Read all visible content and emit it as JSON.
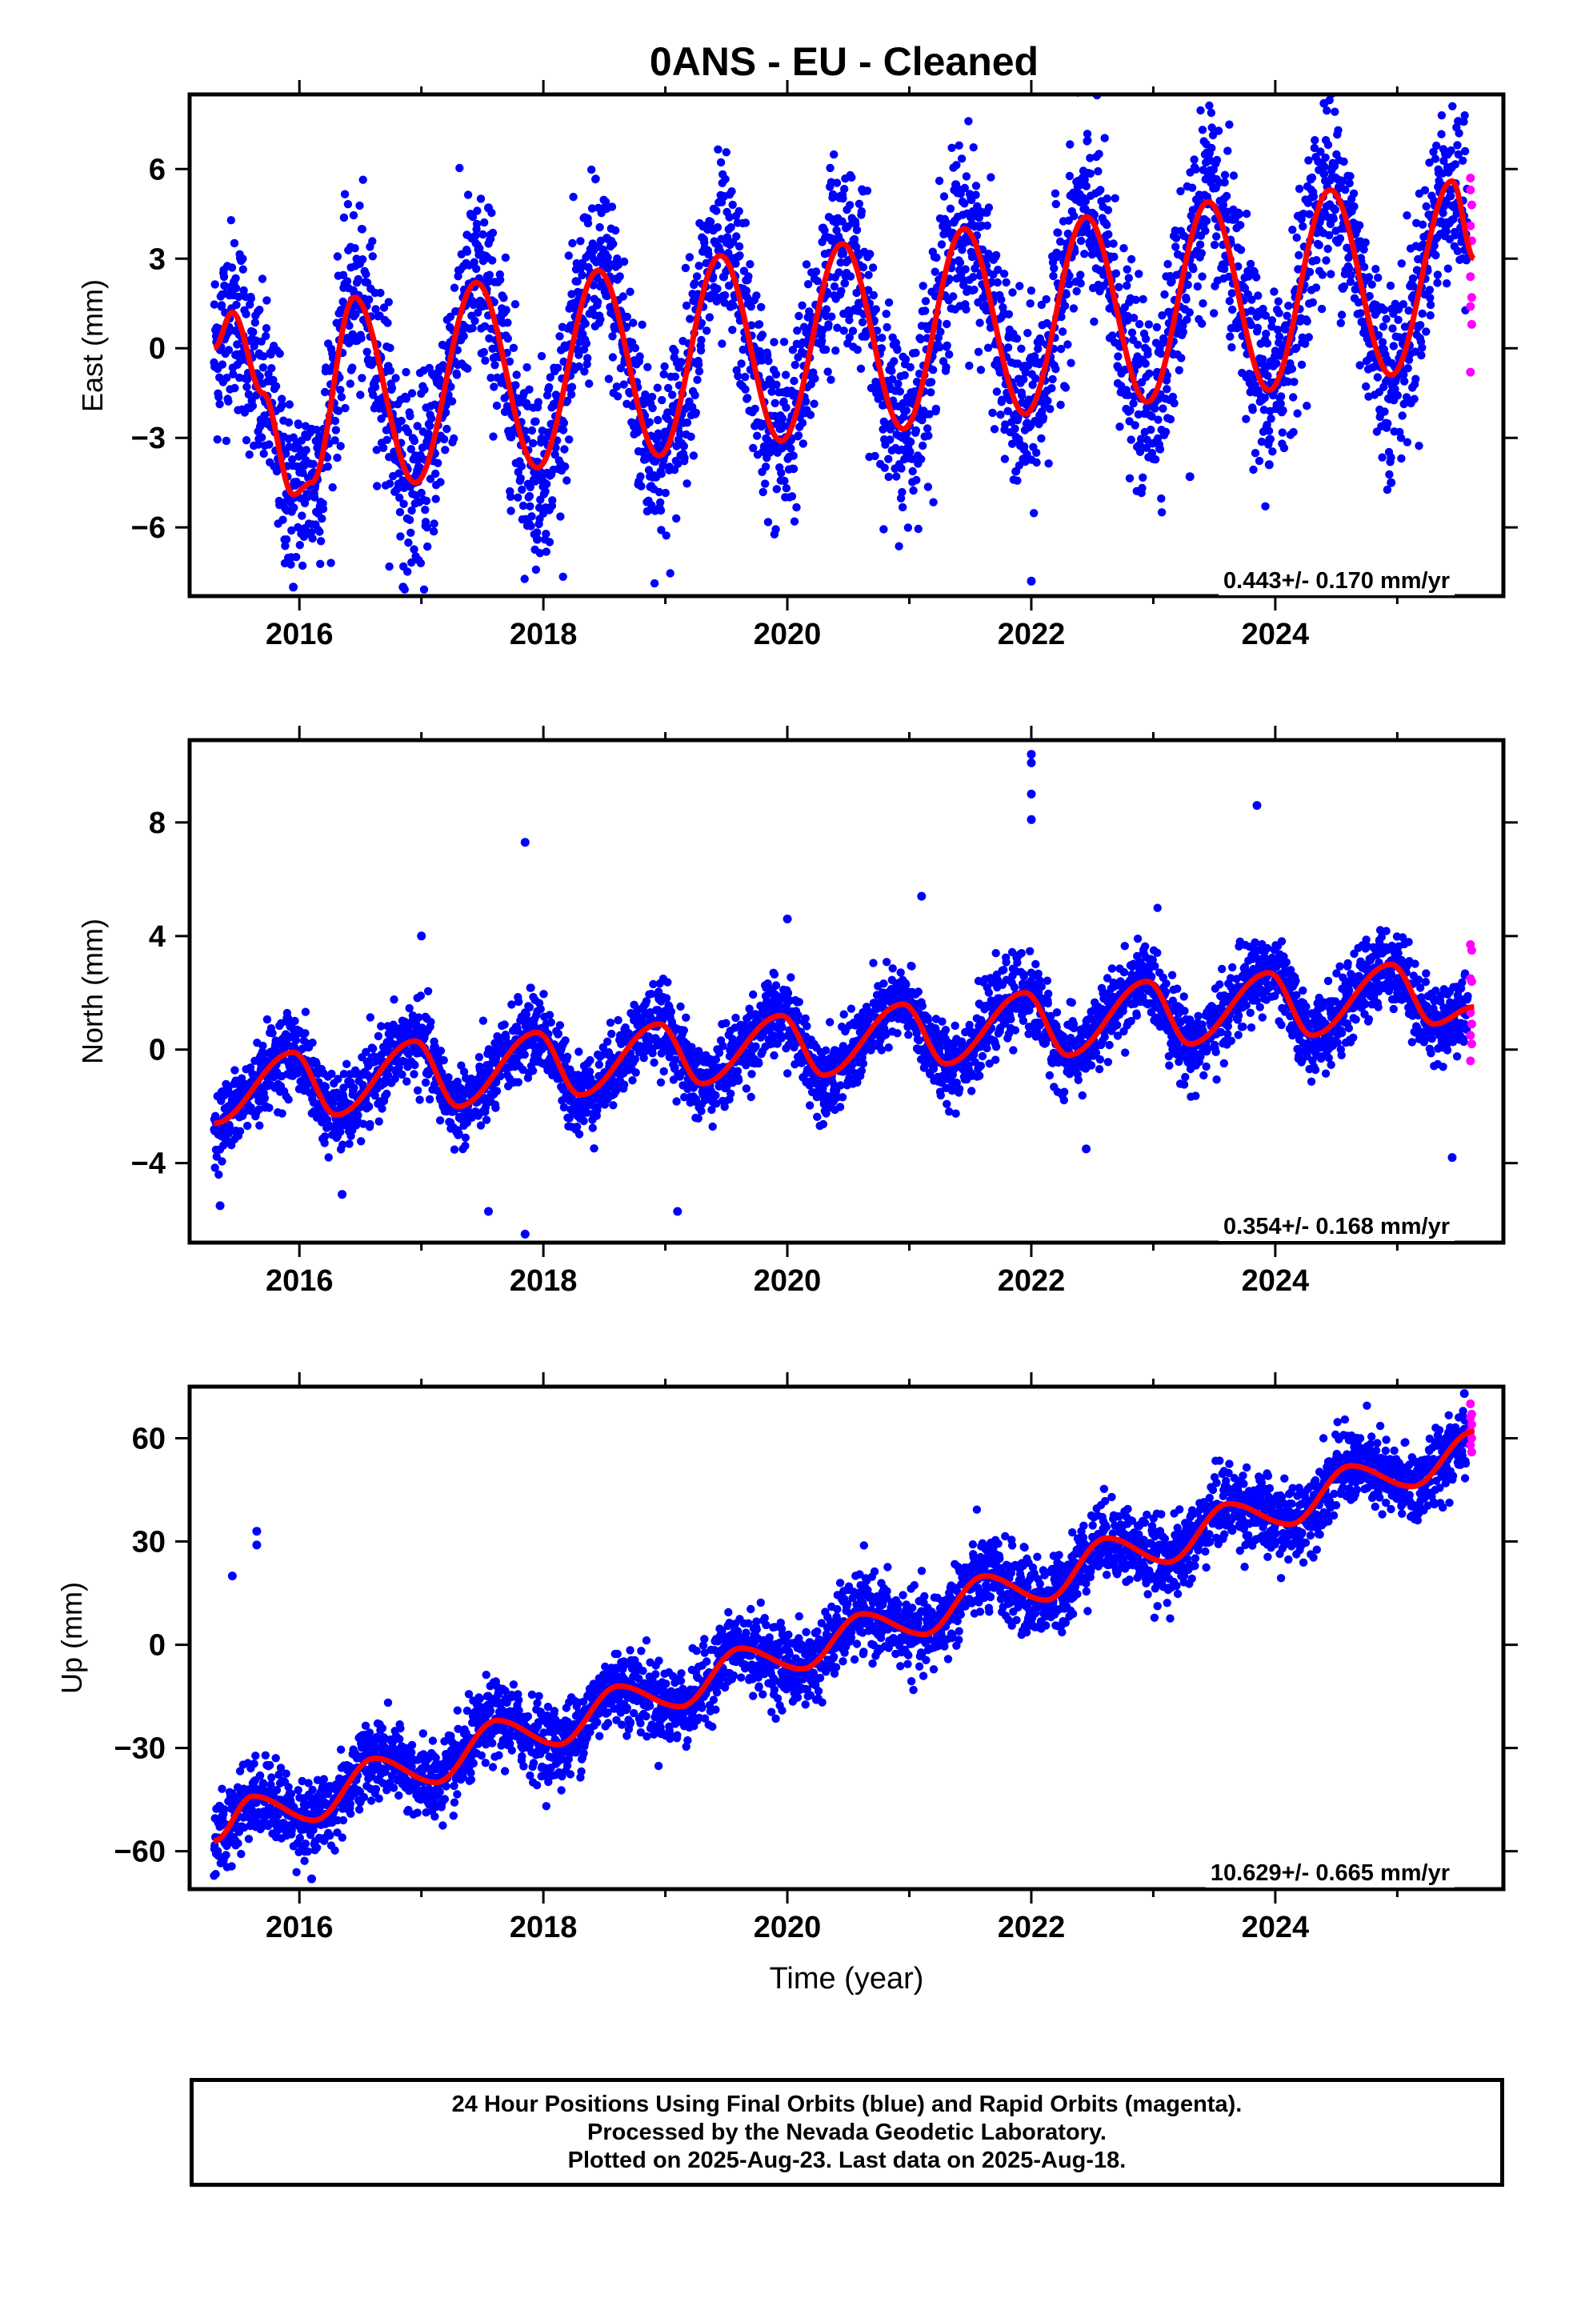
{
  "title": "0ANS  - EU - Cleaned",
  "xlabel": "Time (year)",
  "colors": {
    "final": "#0000ff",
    "rapid": "#ff00ff",
    "model": "#ff0000",
    "axis": "#000000"
  },
  "caption": [
    "24 Hour Positions Using Final Orbits (blue) and Rapid Orbits (magenta).",
    "Processed by the Nevada Geodetic Laboratory.",
    "Plotted on 2025-Aug-23. Last data on 2025-Aug-18."
  ],
  "chart_data": [
    {
      "type": "scatter",
      "name": "east",
      "ylabel": "East (mm)",
      "rate_label": "0.443+/- 0.170 mm/yr",
      "xlim": [
        2015.1,
        2025.87
      ],
      "ylim": [
        -8.3,
        8.5
      ],
      "xticks": [
        2016,
        2018,
        2020,
        2022,
        2024
      ],
      "xtick_labels": [
        "2016",
        "2018",
        "2020",
        "2022",
        "2024"
      ],
      "yticks": [
        -6,
        -3,
        0,
        3,
        6
      ],
      "ytick_labels": [
        "−6",
        "−3",
        "0",
        "3",
        "6"
      ],
      "model": {
        "offset": -1.8,
        "rate": 0.443,
        "amplitude": 3.5,
        "peak_phase": 0.45,
        "ref_year": 2020.25
      },
      "model_curve": [
        [
          2015.3,
          0.0
        ],
        [
          2015.45,
          1.2
        ],
        [
          2015.7,
          -1.5
        ],
        [
          2015.95,
          -4.9
        ],
        [
          2016.1,
          -4.5
        ],
        [
          2016.45,
          1.7
        ],
        [
          2016.95,
          -4.5
        ],
        [
          2017.45,
          2.2
        ],
        [
          2017.95,
          -4.0
        ],
        [
          2018.45,
          2.6
        ],
        [
          2018.95,
          -3.6
        ],
        [
          2019.45,
          3.1
        ],
        [
          2019.95,
          -3.1
        ],
        [
          2020.45,
          3.5
        ],
        [
          2020.95,
          -2.7
        ],
        [
          2021.45,
          4.0
        ],
        [
          2021.95,
          -2.2
        ],
        [
          2022.45,
          4.4
        ],
        [
          2022.95,
          -1.8
        ],
        [
          2023.45,
          4.9
        ],
        [
          2023.95,
          -1.4
        ],
        [
          2024.45,
          5.3
        ],
        [
          2024.95,
          -0.9
        ],
        [
          2025.45,
          5.6
        ],
        [
          2025.63,
          3.0
        ]
      ],
      "rapid_points": [
        [
          2025.6,
          5.7
        ],
        [
          2025.6,
          5.3
        ],
        [
          2025.61,
          4.8
        ],
        [
          2025.6,
          4.1
        ],
        [
          2025.61,
          3.6
        ],
        [
          2025.6,
          2.4
        ],
        [
          2025.61,
          1.7
        ],
        [
          2025.6,
          1.4
        ],
        [
          2025.61,
          0.8
        ],
        [
          2025.6,
          -0.8
        ]
      ],
      "outliers": [
        [
          2015.95,
          -8.0
        ],
        [
          2016.85,
          -8.0
        ],
        [
          2017.95,
          -6.4
        ],
        [
          2022.0,
          -7.8
        ],
        [
          2023.3,
          -4.3
        ],
        [
          2023.95,
          -3.9
        ],
        [
          2024.95,
          -4.5
        ],
        [
          2024.4,
          8.2
        ],
        [
          2025.5,
          7.6
        ],
        [
          2017.55,
          4.7
        ]
      ]
    },
    {
      "type": "scatter",
      "name": "north",
      "ylabel": "North (mm)",
      "rate_label": "0.354+/- 0.168 mm/yr",
      "xlim": [
        2015.1,
        2025.87
      ],
      "ylim": [
        -6.8,
        10.9
      ],
      "xticks": [
        2016,
        2018,
        2020,
        2022,
        2024
      ],
      "xtick_labels": [
        "2016",
        "2018",
        "2020",
        "2022",
        "2024"
      ],
      "yticks": [
        -4,
        0,
        4,
        8
      ],
      "ytick_labels": [
        "−4",
        "0",
        "4",
        "8"
      ],
      "model": {
        "offset": -0.5,
        "rate": 0.354,
        "amplitude": 1.1,
        "peak_phase": 0.95,
        "ref_year": 2020.25
      },
      "model_curve": [
        [
          2015.3,
          -2.6
        ],
        [
          2015.95,
          -0.1
        ],
        [
          2016.3,
          -2.3
        ],
        [
          2016.95,
          0.3
        ],
        [
          2017.3,
          -2.0
        ],
        [
          2017.95,
          0.6
        ],
        [
          2018.3,
          -1.6
        ],
        [
          2018.95,
          0.9
        ],
        [
          2019.3,
          -1.2
        ],
        [
          2019.95,
          1.2
        ],
        [
          2020.3,
          -0.9
        ],
        [
          2020.95,
          1.6
        ],
        [
          2021.3,
          -0.5
        ],
        [
          2021.95,
          2.0
        ],
        [
          2022.3,
          -0.2
        ],
        [
          2022.95,
          2.4
        ],
        [
          2023.3,
          0.2
        ],
        [
          2023.95,
          2.7
        ],
        [
          2024.3,
          0.5
        ],
        [
          2024.95,
          3.0
        ],
        [
          2025.3,
          0.9
        ],
        [
          2025.63,
          1.5
        ]
      ],
      "rapid_points": [
        [
          2025.6,
          3.7
        ],
        [
          2025.61,
          3.5
        ],
        [
          2025.6,
          2.5
        ],
        [
          2025.61,
          2.4
        ],
        [
          2025.6,
          1.3
        ],
        [
          2025.61,
          0.9
        ],
        [
          2025.6,
          0.5
        ],
        [
          2025.61,
          0.2
        ],
        [
          2025.6,
          -0.4
        ]
      ],
      "outliers": [
        [
          2022.0,
          10.4
        ],
        [
          2022.0,
          10.1
        ],
        [
          2022.0,
          9.0
        ],
        [
          2022.0,
          8.1
        ],
        [
          2017.85,
          7.3
        ],
        [
          2023.85,
          8.6
        ],
        [
          2015.35,
          -5.5
        ],
        [
          2016.35,
          -5.1
        ],
        [
          2017.55,
          -5.7
        ],
        [
          2017.85,
          -6.5
        ],
        [
          2019.1,
          -5.7
        ],
        [
          2022.45,
          -3.5
        ],
        [
          2025.45,
          -3.8
        ],
        [
          2017.0,
          4.0
        ],
        [
          2021.1,
          5.4
        ],
        [
          2020.0,
          4.6
        ]
      ]
    },
    {
      "type": "scatter",
      "name": "up",
      "ylabel": "Up (mm)",
      "rate_label": "10.629+/- 0.665 mm/yr",
      "xlim": [
        2015.1,
        2025.87
      ],
      "ylim": [
        -71,
        75
      ],
      "xticks": [
        2016,
        2018,
        2020,
        2022,
        2024
      ],
      "xtick_labels": [
        "2016",
        "2018",
        "2020",
        "2022",
        "2024"
      ],
      "yticks": [
        -60,
        -30,
        0,
        30,
        60
      ],
      "ytick_labels": [
        "−60",
        "−30",
        "0",
        "30",
        "60"
      ],
      "model": {
        "offset": -3.0,
        "rate": 10.629,
        "amplitude": 4.5,
        "peak_phase": 0.62,
        "ref_year": 2020.25
      },
      "model_curve": [
        [
          2015.3,
          -57
        ],
        [
          2015.62,
          -44
        ],
        [
          2016.12,
          -51
        ],
        [
          2016.62,
          -33
        ],
        [
          2017.12,
          -40
        ],
        [
          2017.62,
          -22
        ],
        [
          2018.12,
          -29
        ],
        [
          2018.62,
          -12
        ],
        [
          2019.12,
          -18
        ],
        [
          2019.62,
          -1
        ],
        [
          2020.12,
          -7
        ],
        [
          2020.62,
          9
        ],
        [
          2021.12,
          3
        ],
        [
          2021.62,
          20
        ],
        [
          2022.12,
          13
        ],
        [
          2022.62,
          31
        ],
        [
          2023.12,
          24
        ],
        [
          2023.62,
          41
        ],
        [
          2024.12,
          35
        ],
        [
          2024.62,
          52
        ],
        [
          2025.12,
          46
        ],
        [
          2025.63,
          62
        ]
      ],
      "rapid_points": [
        [
          2025.6,
          70
        ],
        [
          2025.61,
          67
        ],
        [
          2025.6,
          66
        ],
        [
          2025.61,
          64
        ],
        [
          2025.6,
          62
        ],
        [
          2025.61,
          60
        ],
        [
          2025.6,
          58
        ],
        [
          2025.61,
          56
        ]
      ],
      "outliers": [
        [
          2015.45,
          20
        ],
        [
          2015.65,
          33
        ],
        [
          2015.65,
          29
        ],
        [
          2016.1,
          -68
        ],
        [
          2025.55,
          73
        ]
      ]
    }
  ]
}
